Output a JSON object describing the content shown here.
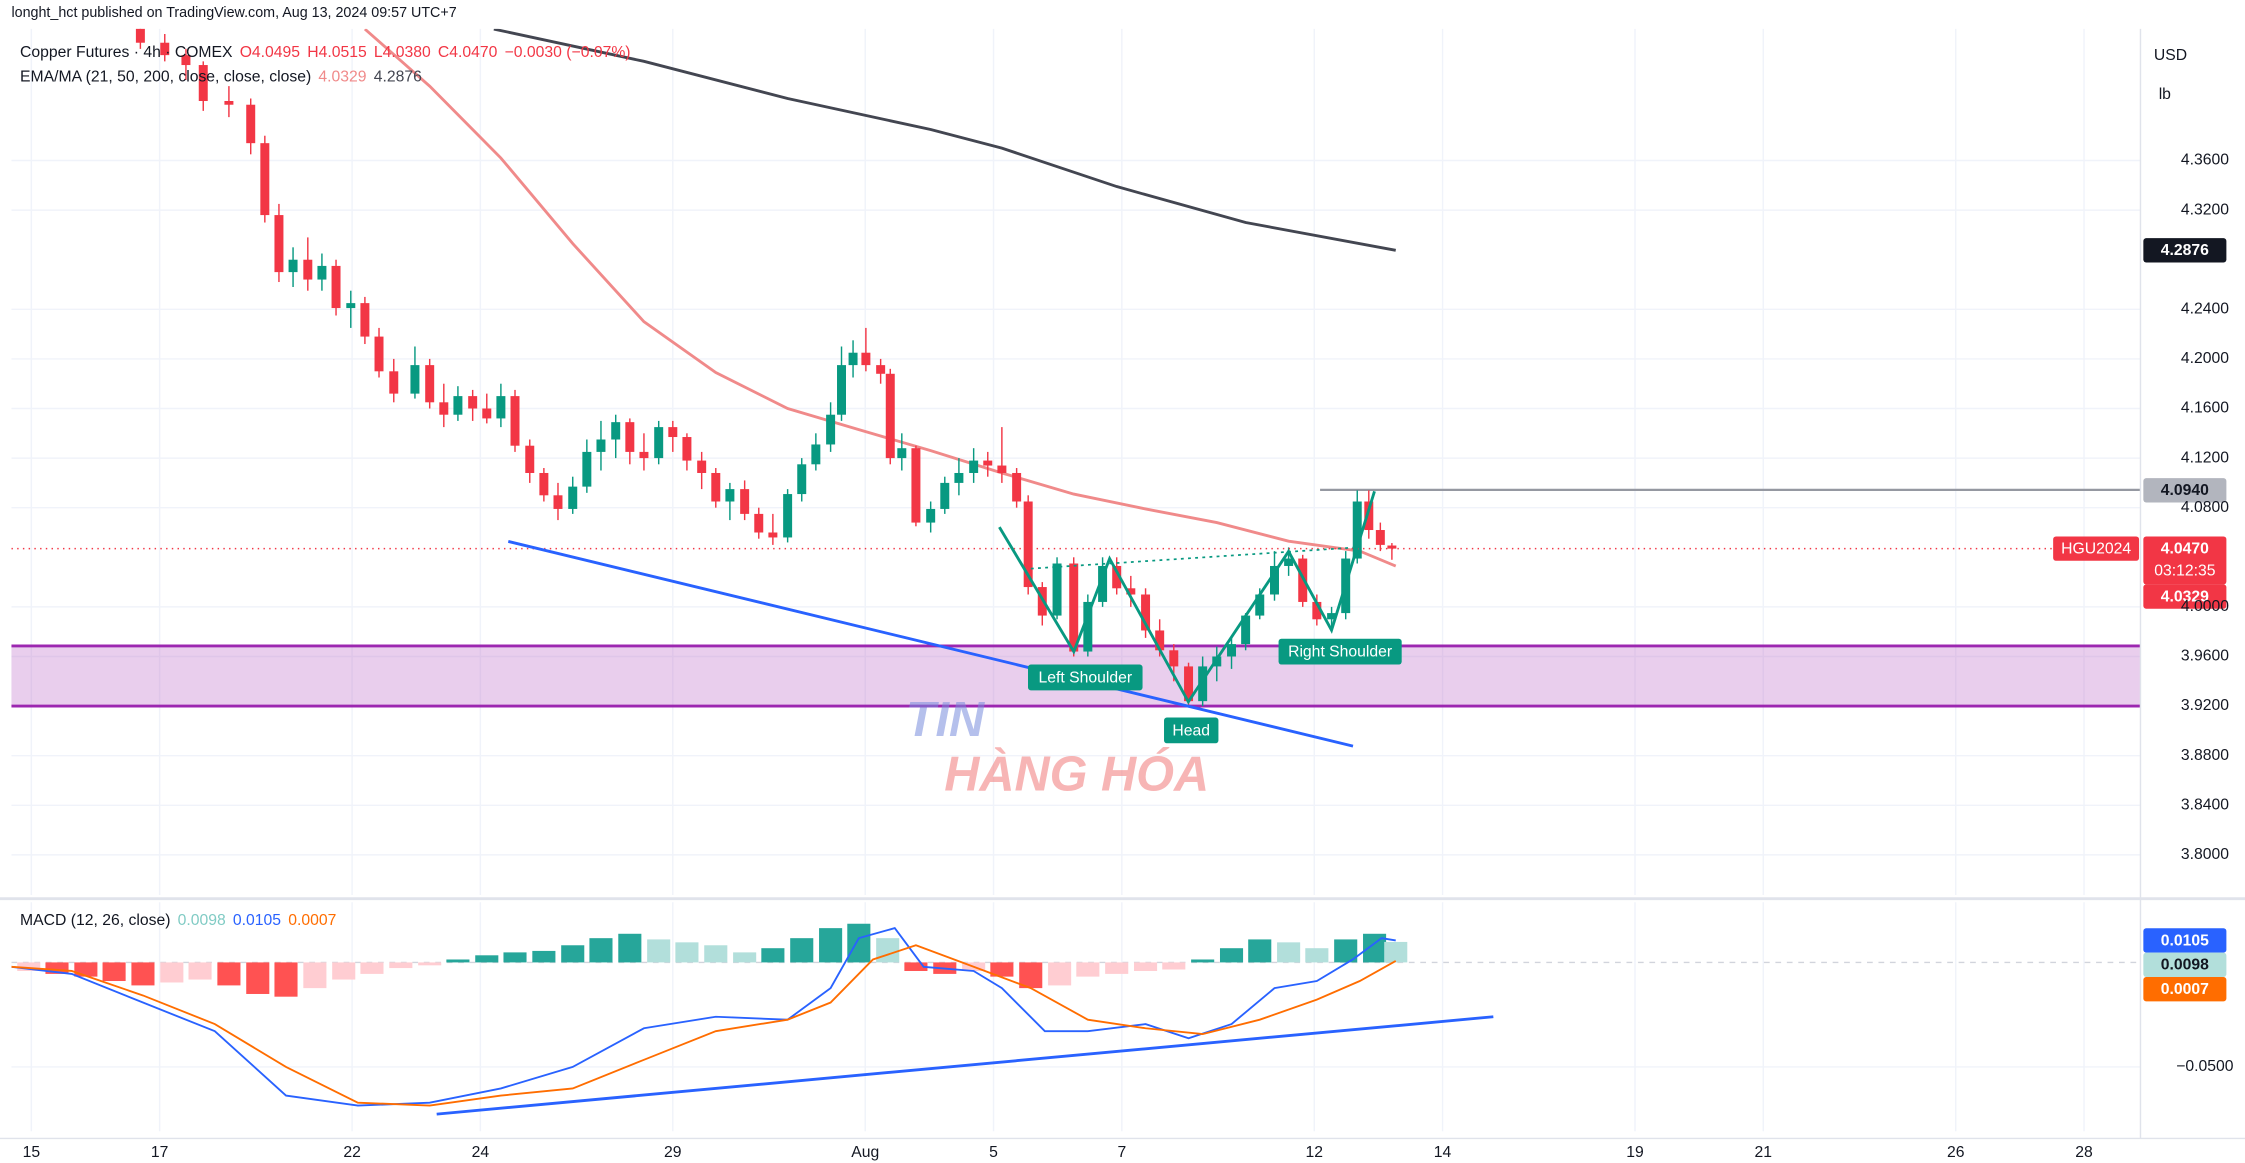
{
  "header": "longht_hct published on TradingView.com, Aug 13, 2024 09:57 UTC+7",
  "currency": "USD",
  "unit": "lb",
  "watermark": [
    "TIN",
    "HÀNG HÓA"
  ],
  "annotations": [
    "Left Shoulder",
    "Head",
    "Right Shoulder"
  ],
  "chart_data": [
    {
      "type": "candlestick",
      "title": "Copper Futures · 4h · COMEX",
      "legend_values": [
        "O4.0495",
        "H4.0515",
        "L4.0380",
        "C4.0470",
        "−0.0030 (−0.07%)"
      ],
      "indicator": "EMA/MA (21, 50, 200, close, close, close)",
      "indicator_values": [
        "4.0329",
        "4.2876"
      ],
      "symbol": "HGU2024",
      "countdown": "03:12:35",
      "up_color": "#089981",
      "down_color": "#f23645",
      "x": [
        1.7,
        2.08,
        2.41,
        2.68,
        3.08,
        3.42,
        3.64,
        3.86,
        4.08,
        4.31,
        4.53,
        4.75,
        4.98,
        5.2,
        5.42,
        5.65,
        5.98,
        6.21,
        6.43,
        6.65,
        6.88,
        7.1,
        7.32,
        7.54,
        7.77,
        7.99,
        8.21,
        8.44,
        8.66,
        8.88,
        9.11,
        9.33,
        9.55,
        9.78,
        10.0,
        10.22,
        10.45,
        10.67,
        10.89,
        11.12,
        11.34,
        11.56,
        11.79,
        12.01,
        12.23,
        12.46,
        12.63,
        12.81,
        13.01,
        13.24,
        13.39,
        13.57,
        13.79,
        14.02,
        14.24,
        14.46,
        14.69,
        14.91,
        15.13,
        15.36,
        15.54,
        15.76,
        15.99,
        16.25,
        16.47,
        16.7,
        16.92,
        17.14,
        17.37,
        17.59,
        17.81,
        18.04,
        18.26,
        18.48,
        18.71,
        18.93,
        19.15,
        19.38,
        19.6,
        19.82,
        20.04,
        20.27,
        20.49,
        20.67,
        20.85,
        21.03,
        21.21
      ],
      "open": [
        4.47,
        4.455,
        4.445,
        4.437,
        4.408,
        4.405,
        4.374,
        4.316,
        4.27,
        4.28,
        4.264,
        4.275,
        4.241,
        4.245,
        4.218,
        4.19,
        4.172,
        4.195,
        4.165,
        4.155,
        4.17,
        4.16,
        4.152,
        4.17,
        4.13,
        4.108,
        4.09,
        4.079,
        4.097,
        4.125,
        4.135,
        4.149,
        4.125,
        4.12,
        4.145,
        4.137,
        4.118,
        4.108,
        4.085,
        4.095,
        4.075,
        4.06,
        4.056,
        4.091,
        4.115,
        4.131,
        4.155,
        4.195,
        4.205,
        4.195,
        4.188,
        4.12,
        4.128,
        4.068,
        4.079,
        4.1,
        4.108,
        4.118,
        4.114,
        4.108,
        4.085,
        4.016,
        3.993,
        4.035,
        3.964,
        4.004,
        4.033,
        4.015,
        4.01,
        3.981,
        3.965,
        3.952,
        3.924,
        3.952,
        3.96,
        3.97,
        3.993,
        4.01,
        4.033,
        4.039,
        4.004,
        3.99,
        3.995,
        4.039,
        4.085,
        4.062,
        4.0495
      ],
      "high": [
        4.478,
        4.462,
        4.45,
        4.44,
        4.42,
        4.41,
        4.38,
        4.325,
        4.29,
        4.298,
        4.285,
        4.28,
        4.255,
        4.25,
        4.225,
        4.2,
        4.21,
        4.2,
        4.18,
        4.178,
        4.175,
        4.172,
        4.18,
        4.175,
        4.135,
        4.112,
        4.1,
        4.105,
        4.135,
        4.15,
        4.155,
        4.152,
        4.14,
        4.15,
        4.15,
        4.14,
        4.125,
        4.112,
        4.1,
        4.102,
        4.08,
        4.075,
        4.095,
        4.12,
        4.14,
        4.165,
        4.21,
        4.215,
        4.225,
        4.2,
        4.192,
        4.14,
        4.13,
        4.085,
        4.105,
        4.12,
        4.128,
        4.125,
        4.145,
        4.112,
        4.09,
        4.02,
        4.04,
        4.04,
        4.01,
        4.04,
        4.04,
        4.025,
        4.015,
        3.99,
        3.97,
        3.955,
        3.96,
        3.968,
        3.975,
        3.995,
        4.015,
        4.045,
        4.048,
        4.042,
        4.01,
        4.0,
        4.045,
        4.094,
        4.094,
        4.068,
        4.0515
      ],
      "low": [
        4.45,
        4.44,
        4.425,
        4.4,
        4.395,
        4.365,
        4.31,
        4.262,
        4.258,
        4.255,
        4.255,
        4.235,
        4.225,
        4.212,
        4.185,
        4.165,
        4.168,
        4.16,
        4.145,
        4.15,
        4.15,
        4.148,
        4.145,
        4.125,
        4.1,
        4.085,
        4.07,
        4.075,
        4.092,
        4.11,
        4.12,
        4.115,
        4.11,
        4.115,
        4.125,
        4.11,
        4.095,
        4.08,
        4.07,
        4.07,
        4.055,
        4.05,
        4.052,
        4.085,
        4.11,
        4.125,
        4.15,
        4.185,
        4.19,
        4.18,
        4.115,
        4.11,
        4.065,
        4.06,
        4.075,
        4.09,
        4.1,
        4.105,
        4.1,
        4.08,
        4.01,
        3.985,
        3.99,
        3.96,
        3.96,
        4.0,
        4.01,
        4.0,
        3.975,
        3.96,
        3.94,
        3.92,
        3.92,
        3.94,
        3.95,
        3.965,
        3.99,
        4.005,
        4.025,
        4.0,
        3.985,
        3.982,
        3.99,
        4.035,
        4.055,
        4.045,
        4.038
      ],
      "close": [
        4.455,
        4.445,
        4.437,
        4.408,
        4.405,
        4.374,
        4.316,
        4.27,
        4.28,
        4.264,
        4.275,
        4.241,
        4.245,
        4.218,
        4.19,
        4.172,
        4.195,
        4.165,
        4.155,
        4.17,
        4.16,
        4.152,
        4.17,
        4.13,
        4.108,
        4.09,
        4.079,
        4.097,
        4.125,
        4.135,
        4.149,
        4.125,
        4.12,
        4.145,
        4.137,
        4.118,
        4.108,
        4.085,
        4.095,
        4.075,
        4.06,
        4.056,
        4.091,
        4.115,
        4.131,
        4.155,
        4.195,
        4.205,
        4.195,
        4.188,
        4.12,
        4.128,
        4.068,
        4.079,
        4.1,
        4.108,
        4.118,
        4.114,
        4.108,
        4.085,
        4.016,
        3.993,
        4.035,
        3.964,
        4.004,
        4.033,
        4.015,
        4.01,
        3.981,
        3.965,
        3.952,
        3.924,
        3.952,
        3.96,
        3.97,
        3.993,
        4.01,
        4.033,
        4.039,
        4.004,
        3.99,
        3.995,
        4.039,
        4.085,
        4.062,
        4.05,
        4.047
      ],
      "lines": [
        {
          "color": "#434651",
          "x": [
            7.21,
            9.55,
            11.79,
            14.02,
            15.13,
            16.92,
            18.93,
            21.27
          ],
          "values": [
            4.466,
            4.44,
            4.41,
            4.385,
            4.37,
            4.339,
            4.31,
            4.2876
          ]
        },
        {
          "color": "#f08a8a",
          "x": [
            5.2,
            6.21,
            7.32,
            8.44,
            9.55,
            10.67,
            11.79,
            12.9,
            14.02,
            15.13,
            16.25,
            17.37,
            18.48,
            19.6,
            20.71,
            21.27
          ],
          "values": [
            4.466,
            4.42,
            4.362,
            4.293,
            4.23,
            4.189,
            4.16,
            4.143,
            4.126,
            4.108,
            4.091,
            4.079,
            4.068,
            4.053,
            4.045,
            4.0329
          ]
        }
      ],
      "price_labels": [
        {
          "value": 4.2876,
          "color": "#131722"
        },
        {
          "value": 4.094,
          "label": "4.0940",
          "color": "#b2b5be"
        },
        {
          "value": 4.047,
          "label": "4.0470",
          "color": "#f23645"
        },
        {
          "value": 4.0329,
          "color": "#f23645"
        }
      ],
      "xlim": [
        -0.31,
        32.88
      ],
      "xticks": [
        {
          "value": 0,
          "label": "15"
        },
        {
          "value": 2,
          "label": "17"
        },
        {
          "value": 5,
          "label": "22"
        },
        {
          "value": 7,
          "label": "24"
        },
        {
          "value": 10,
          "label": "29"
        },
        {
          "value": 13,
          "label": "Aug"
        },
        {
          "value": 15,
          "label": "5"
        },
        {
          "value": 17,
          "label": "7"
        },
        {
          "value": 20,
          "label": "12"
        },
        {
          "value": 22,
          "label": "14"
        },
        {
          "value": 25,
          "label": "19"
        },
        {
          "value": 27,
          "label": "21"
        },
        {
          "value": 30,
          "label": "26"
        },
        {
          "value": 32,
          "label": "28"
        }
      ],
      "ylim": [
        3.7676,
        4.4662
      ],
      "yticks": [
        {
          "value": 4.36,
          "label": "4.3600"
        },
        {
          "value": 4.32,
          "label": "4.3200"
        },
        {
          "value": 4.24,
          "label": "4.2400"
        },
        {
          "value": 4.2,
          "label": "4.2000"
        },
        {
          "value": 4.16,
          "label": "4.1600"
        },
        {
          "value": 4.12,
          "label": "4.1200"
        },
        {
          "value": 4.08,
          "label": "4.0800"
        },
        {
          "value": 4.0,
          "label": "4.0000"
        },
        {
          "value": 3.96,
          "label": "3.9600"
        },
        {
          "value": 3.92,
          "label": "3.9200"
        },
        {
          "value": 3.88,
          "label": "3.8800"
        },
        {
          "value": 3.84,
          "label": "3.8400"
        },
        {
          "value": 3.8,
          "label": "3.8000"
        }
      ],
      "grid": true
    },
    {
      "type": "macd",
      "title": "MACD (12, 26, close)",
      "legend_values": [
        "0.0098",
        "0.0105",
        "0.0007"
      ],
      "legend_colors": [
        "#80cbc4",
        "#2962ff",
        "#ff6d00"
      ],
      "series": [
        {
          "color": "#2962ff",
          "x": [
            -0.31,
            0.63,
            1.74,
            2.86,
            3.97,
            5.09,
            6.21,
            7.32,
            8.44,
            9.55,
            10.67,
            11.79,
            12.46,
            12.9,
            13.46,
            13.91,
            14.69,
            15.13,
            15.8,
            16.47,
            17.37,
            18.04,
            18.71,
            19.38,
            20.04,
            20.6,
            21.05,
            21.27
          ],
          "values": [
            -0.0021,
            -0.0055,
            -0.0192,
            -0.0329,
            -0.0637,
            -0.0685,
            -0.0671,
            -0.0603,
            -0.05,
            -0.0315,
            -0.026,
            -0.0274,
            -0.0123,
            0.0116,
            0.0164,
            -0.0021,
            -0.0041,
            -0.0123,
            -0.0329,
            -0.0329,
            -0.0295,
            -0.0363,
            -0.0295,
            -0.0123,
            -0.0089,
            0.0014,
            0.0116,
            0.0105
          ]
        },
        {
          "color": "#ff6d00",
          "x": [
            -0.31,
            0.63,
            1.74,
            2.86,
            3.97,
            5.09,
            6.21,
            7.32,
            8.44,
            9.55,
            10.67,
            11.79,
            12.46,
            13.12,
            13.79,
            14.69,
            15.58,
            16.47,
            17.37,
            18.26,
            19.15,
            20.04,
            20.71,
            21.27
          ],
          "values": [
            -0.0021,
            -0.0041,
            -0.0158,
            -0.0295,
            -0.05,
            -0.0671,
            -0.0685,
            -0.0637,
            -0.0603,
            -0.0466,
            -0.0329,
            -0.0274,
            -0.0192,
            0.0014,
            0.0082,
            -0.0021,
            -0.0123,
            -0.0274,
            -0.0315,
            -0.0343,
            -0.0274,
            -0.0178,
            -0.0089,
            0.0007
          ]
        }
      ],
      "histogram": {
        "x": [
          -0.04,
          0.4,
          0.85,
          1.29,
          1.74,
          2.19,
          2.63,
          3.08,
          3.53,
          3.97,
          4.42,
          4.87,
          5.31,
          5.76,
          6.21,
          6.65,
          7.1,
          7.54,
          7.99,
          8.44,
          8.88,
          9.33,
          9.78,
          10.22,
          10.67,
          11.12,
          11.56,
          12.01,
          12.46,
          12.9,
          13.35,
          13.79,
          14.24,
          14.69,
          15.13,
          15.58,
          16.03,
          16.47,
          16.92,
          17.37,
          17.81,
          18.26,
          18.71,
          19.15,
          19.6,
          20.04,
          20.49,
          20.94,
          21.27
        ],
        "values": [
          -0.0041,
          -0.0055,
          -0.0068,
          -0.0089,
          -0.011,
          -0.0096,
          -0.0082,
          -0.011,
          -0.0151,
          -0.0164,
          -0.0123,
          -0.0082,
          -0.0055,
          -0.0027,
          -0.0014,
          0.0014,
          0.0034,
          0.0048,
          0.0055,
          0.0082,
          0.0116,
          0.0137,
          0.011,
          0.0096,
          0.0082,
          0.0048,
          0.0068,
          0.0116,
          0.0164,
          0.0185,
          0.0116,
          -0.0041,
          -0.0055,
          -0.0041,
          -0.0068,
          -0.0123,
          -0.011,
          -0.0068,
          -0.0055,
          -0.0041,
          -0.0034,
          0.0014,
          0.0068,
          0.011,
          0.0096,
          0.0068,
          0.011,
          0.0137,
          0.0098
        ],
        "positive_colors": [
          "#26a69a",
          "#b2dfdb"
        ],
        "negative_colors": [
          "#ff5252",
          "#ffcdd2"
        ]
      },
      "price_labels": [
        {
          "value": 0.0105,
          "color": "#2962ff"
        },
        {
          "value": 0.0098,
          "color": "#b2dfdb"
        },
        {
          "value": 0.0007,
          "color": "#ff6d00"
        }
      ],
      "ylim": [
        -0.0808,
        0.0288
      ],
      "yticks": [
        {
          "value": -0.05,
          "label": "−0.0500"
        }
      ],
      "grid": true
    }
  ]
}
